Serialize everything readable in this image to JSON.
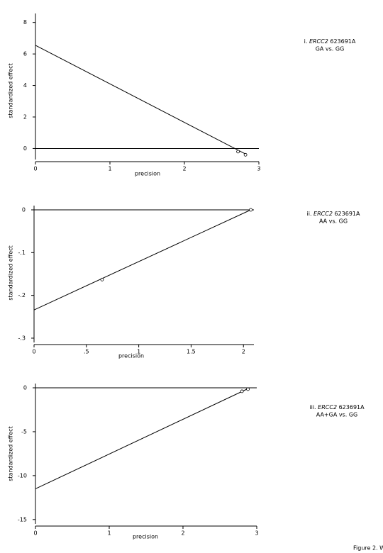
{
  "chart_data": [
    {
      "type": "scatter",
      "xlabel": "precision",
      "ylabel": "standardized effect",
      "x": [
        2.72,
        2.82
      ],
      "values": [
        -0.2,
        -0.4
      ],
      "fit_x": [
        0,
        2.82
      ],
      "fit_values": [
        6.55,
        -0.35
      ],
      "xlim": [
        0,
        3
      ],
      "ylim": [
        -0.7,
        8.3
      ],
      "xticks": [
        0,
        1,
        2,
        3
      ],
      "yticks": [
        0,
        2,
        4,
        6,
        8
      ],
      "annotation": {
        "prefix": "i.",
        "gene": "ERCC2",
        "snp": "623691A",
        "comparison": "GA vs. GG"
      }
    },
    {
      "type": "scatter",
      "xlabel": "precision",
      "ylabel": "standardized effect",
      "x": [
        0.65,
        2.07
      ],
      "values": [
        -0.163,
        0
      ],
      "fit_x": [
        0,
        2.07
      ],
      "fit_values": [
        -0.234,
        0
      ],
      "xlim": [
        0,
        2.1
      ],
      "ylim": [
        -0.31,
        0
      ],
      "xticks": [
        0,
        {
          "value": 0.5,
          "label": ".5"
        },
        1,
        1.5,
        2
      ],
      "yticks": [
        {
          "value": -0.3,
          "label": "-.3"
        },
        {
          "value": -0.2,
          "label": "-.2"
        },
        {
          "value": -0.1,
          "label": "-.1"
        },
        0
      ],
      "annotation": {
        "prefix": "ii.",
        "gene": "ERCC2",
        "snp": "623691A",
        "comparison": "AA vs. GG"
      }
    },
    {
      "type": "scatter",
      "xlabel": "precision",
      "ylabel": "standardized effect",
      "x": [
        2.8,
        2.88
      ],
      "values": [
        -0.4,
        -0.16
      ],
      "fit_x": [
        0,
        2.88
      ],
      "fit_values": [
        -11.5,
        -0.1
      ],
      "xlim": [
        0,
        3
      ],
      "ylim": [
        -15.5,
        0
      ],
      "xticks": [
        0,
        1,
        2,
        3
      ],
      "yticks": [
        -15,
        -10,
        -5,
        0
      ],
      "annotation": {
        "prefix": "iii.",
        "gene": "ERCC2",
        "snp": "623691A",
        "comparison": "AA+GA vs. GG"
      }
    }
  ],
  "footer": "Figure 2. W"
}
